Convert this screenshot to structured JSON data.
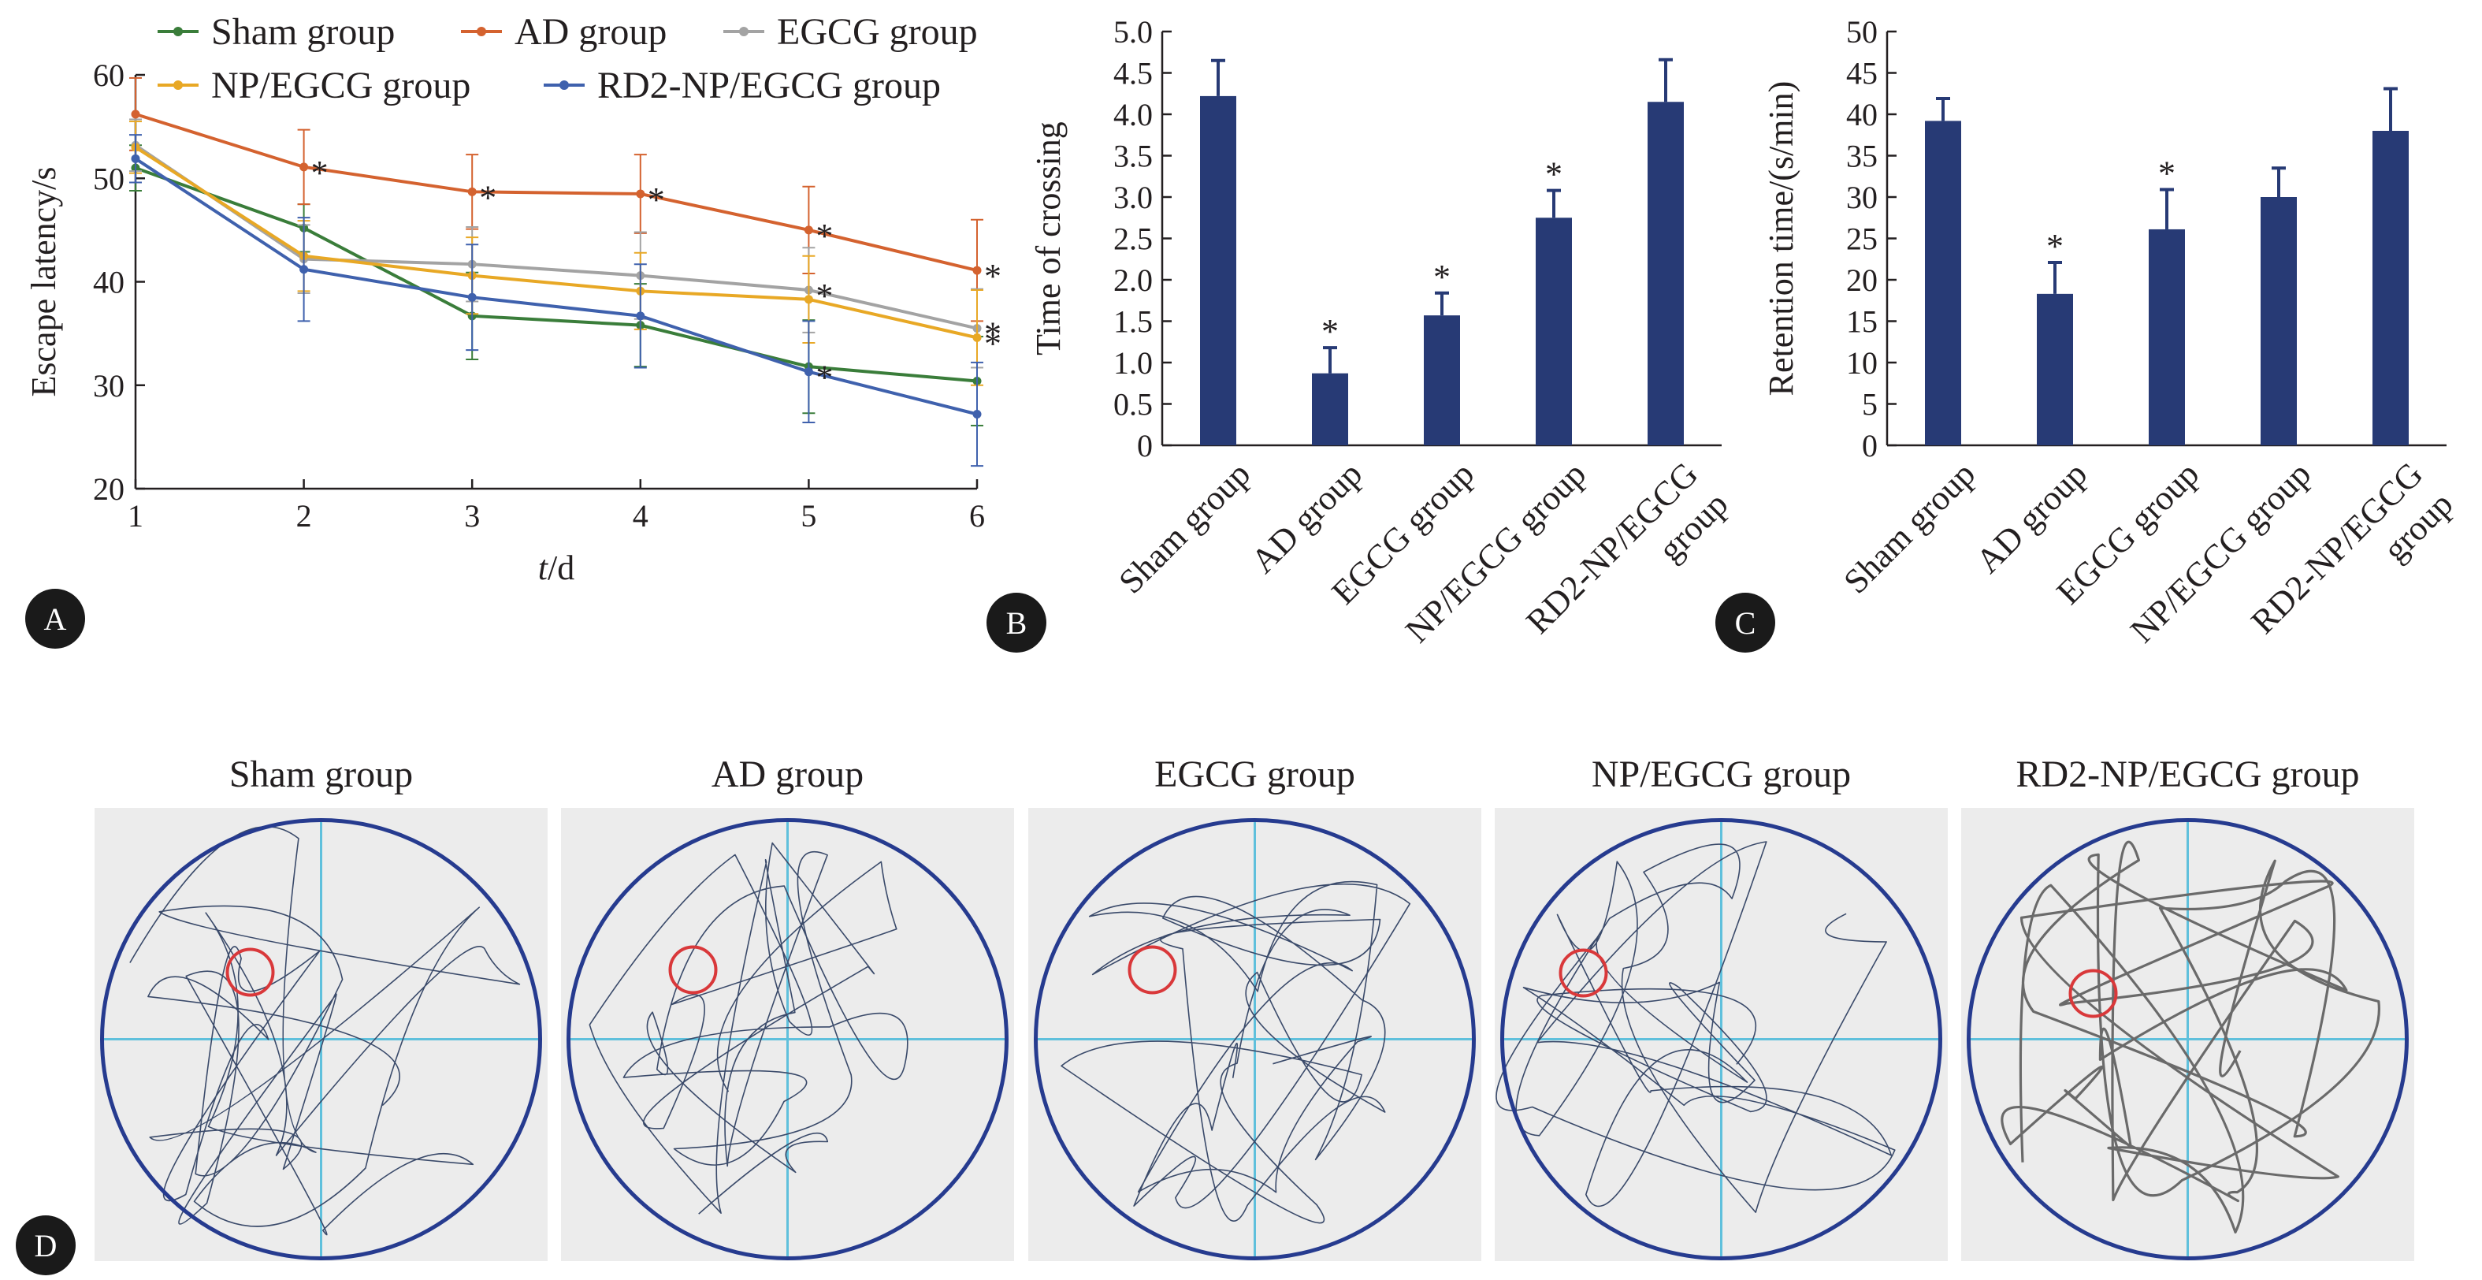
{
  "panel_labels": {
    "a": "A",
    "b": "B",
    "c": "C",
    "d": "D"
  },
  "colors": {
    "sham": "#3a7d3a",
    "ad": "#d4622f",
    "egcg": "#a3a3a3",
    "np": "#e8a825",
    "rd2": "#3f61ad",
    "bar": "#273a75",
    "pool_border": "#263b8f",
    "pool_line": "#5fc0dc",
    "target": "#d9383a"
  },
  "chart_data": [
    {
      "type": "line",
      "panel": "A",
      "xlabel_italic": "t",
      "xlabel_rest": "/d",
      "ylabel": "Escape latency/s",
      "x": [
        1,
        2,
        3,
        4,
        5,
        6
      ],
      "xticks": [
        "1",
        "2",
        "3",
        "4",
        "5",
        "6"
      ],
      "ylim": [
        20,
        60
      ],
      "yticks": [
        "20",
        "30",
        "40",
        "50",
        "60"
      ],
      "legend_position": "top",
      "series": [
        {
          "name": "Sham group",
          "color_key": "sham",
          "values": [
            51.0,
            45.2,
            36.7,
            35.8,
            31.8,
            30.4
          ],
          "errors": [
            2.2,
            2.3,
            4.2,
            4.0,
            4.5,
            4.3
          ]
        },
        {
          "name": "AD group",
          "color_key": "ad",
          "values": [
            56.2,
            51.1,
            48.7,
            48.5,
            45.0,
            41.1
          ],
          "errors": [
            3.5,
            3.6,
            3.6,
            3.8,
            4.2,
            4.9
          ]
        },
        {
          "name": "EGCG group",
          "color_key": "egcg",
          "values": [
            53.2,
            42.2,
            41.7,
            40.6,
            39.2,
            35.5
          ],
          "errors": [
            2.5,
            3.3,
            3.6,
            4.2,
            4.1,
            3.8
          ]
        },
        {
          "name": "NP/EGCG group",
          "color_key": "np",
          "values": [
            53.0,
            42.5,
            40.6,
            39.1,
            38.3,
            34.6
          ],
          "errors": [
            2.5,
            3.4,
            3.7,
            3.7,
            4.2,
            4.6
          ]
        },
        {
          "name": "RD2-NP/EGCG group",
          "color_key": "rd2",
          "values": [
            51.9,
            41.2,
            38.5,
            36.7,
            31.3,
            27.2
          ],
          "errors": [
            2.3,
            5.0,
            5.1,
            5.0,
            4.9,
            5.0
          ]
        }
      ],
      "annotations": [
        {
          "text": "*",
          "x": 2,
          "y": 51.1
        },
        {
          "text": "*",
          "x": 3,
          "y": 48.7
        },
        {
          "text": "*",
          "x": 4,
          "y": 48.5
        },
        {
          "text": "*",
          "x": 5,
          "y": 45.0
        },
        {
          "text": "*",
          "x": 5,
          "y": 39.2
        },
        {
          "text": "*",
          "x": 5,
          "y": 31.3
        },
        {
          "text": "*",
          "x": 6,
          "y": 41.1
        },
        {
          "text": "*",
          "x": 6,
          "y": 35.5
        },
        {
          "text": "*",
          "x": 6,
          "y": 34.6
        }
      ]
    },
    {
      "type": "bar",
      "panel": "B",
      "ylabel": "Time of crossing",
      "categories": [
        "Sham group",
        "AD group",
        "EGCG group",
        "NP/EGCG group",
        "RD2-NP/EGCG group"
      ],
      "category_lines": [
        [
          "Sham group"
        ],
        [
          "AD group"
        ],
        [
          "EGCG group"
        ],
        [
          "NP/EGCG group"
        ],
        [
          "RD2-NP/EGCG",
          "group"
        ]
      ],
      "values": [
        4.22,
        0.87,
        1.57,
        2.75,
        4.15
      ],
      "errors": [
        0.43,
        0.31,
        0.27,
        0.33,
        0.51
      ],
      "significant": [
        false,
        true,
        true,
        true,
        false
      ],
      "ylim": [
        0,
        5.0
      ],
      "yticks": [
        "0",
        "0.5",
        "1.0",
        "1.5",
        "2.0",
        "2.5",
        "3.0",
        "3.5",
        "4.0",
        "4.5",
        "5.0"
      ]
    },
    {
      "type": "bar",
      "panel": "C",
      "ylabel": "Retention time/(s/min)",
      "categories": [
        "Sham group",
        "AD group",
        "EGCG group",
        "NP/EGCG group",
        "RD2-NP/EGCG group"
      ],
      "category_lines": [
        [
          "Sham group"
        ],
        [
          "AD group"
        ],
        [
          "EGCG group"
        ],
        [
          "NP/EGCG group"
        ],
        [
          "RD2-NP/EGCG",
          "group"
        ]
      ],
      "values": [
        39.2,
        18.3,
        26.1,
        30.0,
        38.0
      ],
      "errors": [
        2.7,
        3.8,
        4.8,
        3.5,
        5.1
      ],
      "significant": [
        false,
        true,
        true,
        false,
        false
      ],
      "ylim": [
        0,
        50
      ],
      "yticks": [
        "0",
        "5",
        "10",
        "15",
        "20",
        "25",
        "30",
        "35",
        "40",
        "45",
        "50"
      ]
    }
  ],
  "trajectories": {
    "titles": [
      "Sham group",
      "AD group",
      "EGCG group",
      "NP/EGCG group",
      "RD2-NP/EGCG group"
    ]
  }
}
